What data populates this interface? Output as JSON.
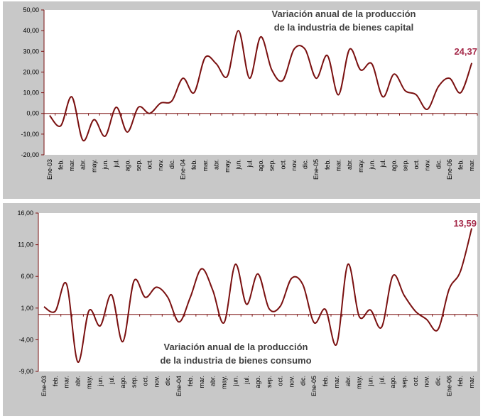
{
  "colors": {
    "line": "#7a1010",
    "highlight": "#a52a4a",
    "panel": "#c8c8c8",
    "plot": "#ffffff",
    "axis": "#7a1010"
  },
  "chart_data": [
    {
      "type": "line",
      "title_lines": [
        "Variación anual de la producción",
        "de la industria de  bienes capital"
      ],
      "end_label": "24,37",
      "ylim": [
        -20,
        50
      ],
      "yticks": [
        -20,
        -10,
        0,
        10,
        20,
        30,
        40,
        50
      ],
      "ytick_labels": [
        "-20,00",
        "-10,00",
        "0,00",
        "10,00",
        "20,00",
        "30,00",
        "40,00",
        "50,00"
      ],
      "grid": false,
      "categories": [
        "Ene-03",
        "feb.",
        "mar.",
        "abr.",
        "may.",
        "jun.",
        "jul.",
        "ago.",
        "sep.",
        "oct.",
        "nov.",
        "dic.",
        "Ene-04",
        "feb.",
        "mar.",
        "abr.",
        "may.",
        "jun.",
        "jul.",
        "ago.",
        "sep.",
        "oct.",
        "nov.",
        "dic.",
        "Ene-05",
        "feb.",
        "mar.",
        "abr.",
        "may.",
        "jun.",
        "jul.",
        "ago.",
        "sep.",
        "oct.",
        "nov.",
        "dic.",
        "Ene-06",
        "feb.",
        "mar."
      ],
      "values": [
        -1,
        -6,
        8,
        -13,
        -3,
        -11,
        3,
        -9,
        3,
        0,
        5,
        6,
        17,
        10,
        27,
        24,
        18,
        40,
        17,
        37,
        21,
        16,
        31,
        31,
        17,
        28,
        9,
        31,
        21,
        24,
        8,
        19,
        11,
        9,
        2,
        13,
        17,
        10,
        24.37
      ]
    },
    {
      "type": "line",
      "title_lines": [
        "Variación anual de la producción",
        "de la industria de  bienes consumo"
      ],
      "end_label": "13,59",
      "ylim": [
        -9,
        16
      ],
      "yticks": [
        -9,
        -4,
        1,
        6,
        11,
        16
      ],
      "ytick_labels": [
        "-9,00",
        "-4,00",
        "1,00",
        "6,00",
        "11,00",
        "16,00"
      ],
      "grid": false,
      "categories": [
        "Ene-03",
        "feb.",
        "mar.",
        "abr.",
        "may.",
        "jun.",
        "jul.",
        "ago.",
        "sep.",
        "oct.",
        "nov.",
        "dic.",
        "Ene-04",
        "feb.",
        "mar.",
        "abr.",
        "may.",
        "jun.",
        "jul.",
        "ago.",
        "sep.",
        "oct.",
        "nov.",
        "dic.",
        "Ene-05",
        "feb.",
        "mar.",
        "abr.",
        "may.",
        "jun.",
        "jul.",
        "ago.",
        "sep.",
        "oct.",
        "nov.",
        "dic.",
        "Ene-06",
        "feb.",
        "mar."
      ],
      "values": [
        1.2,
        0.5,
        4.8,
        -7.5,
        0.6,
        -1.8,
        3.1,
        -4.3,
        5.3,
        2.7,
        4.3,
        2.7,
        -1.2,
        2.7,
        7.2,
        3.8,
        -1.3,
        7.9,
        1.6,
        6.4,
        0.9,
        1.3,
        5.7,
        4.7,
        -1.3,
        0.8,
        -4.7,
        7.9,
        -0.3,
        0.7,
        -2.0,
        6.1,
        3.0,
        0.5,
        -0.8,
        -2.4,
        4.0,
        6.8,
        13.59
      ]
    }
  ]
}
